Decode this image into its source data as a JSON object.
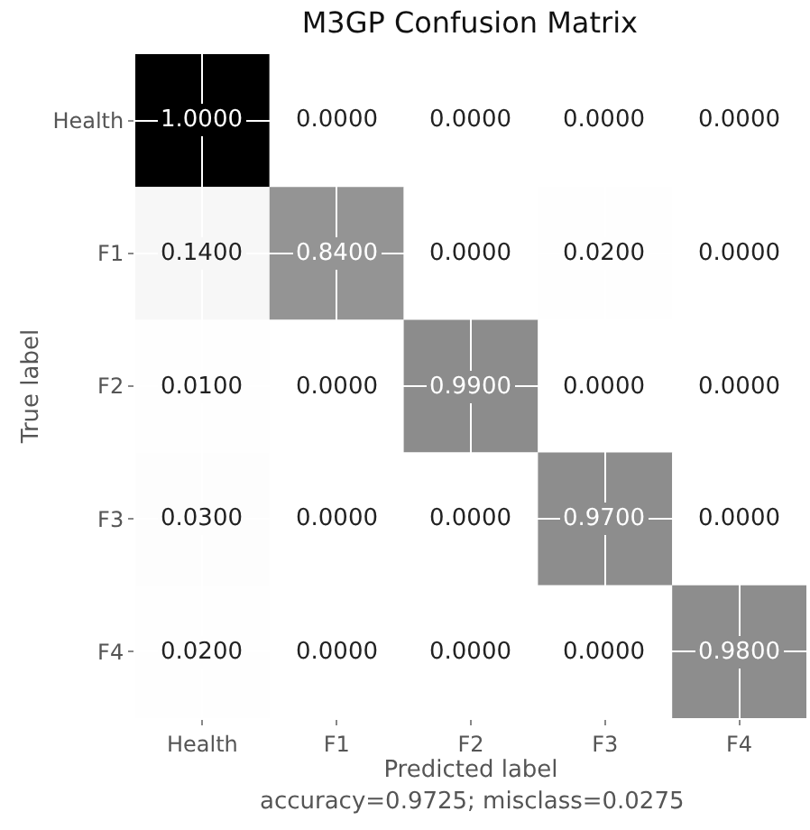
{
  "chart_data": {
    "type": "heatmap",
    "title": "M3GP Confusion Matrix",
    "xlabel": "Predicted label",
    "ylabel": "True label",
    "categories": [
      "Health",
      "F1",
      "F2",
      "F3",
      "F4"
    ],
    "y_categories": [
      "Health",
      "F1",
      "F2",
      "F3",
      "F4"
    ],
    "cells": [
      [
        1.0,
        0.0,
        0.0,
        0.0,
        0.0
      ],
      [
        0.14,
        0.84,
        0.0,
        0.02,
        0.0
      ],
      [
        0.01,
        0.0,
        0.99,
        0.0,
        0.0
      ],
      [
        0.03,
        0.0,
        0.0,
        0.97,
        0.0
      ],
      [
        0.02,
        0.0,
        0.0,
        0.0,
        0.98
      ]
    ],
    "cell_labels": [
      [
        "1.0000",
        "0.0000",
        "0.0000",
        "0.0000",
        "0.0000"
      ],
      [
        "0.1400",
        "0.8400",
        "0.0000",
        "0.0200",
        "0.0000"
      ],
      [
        "0.0100",
        "0.0000",
        "0.9900",
        "0.0000",
        "0.0000"
      ],
      [
        "0.0300",
        "0.0000",
        "0.0000",
        "0.9700",
        "0.0000"
      ],
      [
        "0.0200",
        "0.0000",
        "0.0000",
        "0.0000",
        "0.9800"
      ]
    ],
    "annotations": [
      "accuracy=0.9725; misclass=0.0275"
    ],
    "grid": true
  }
}
